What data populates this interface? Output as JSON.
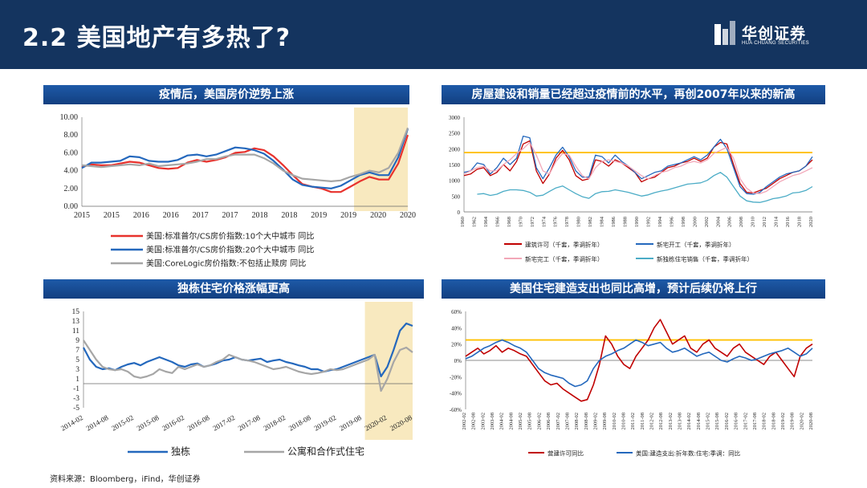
{
  "header": {
    "title": "2.2 美国地产有多热了?",
    "logo_text": "华创证券",
    "logo_sub": "HUA CHUANG SECURITIES"
  },
  "footer": {
    "source": "资料来源：Bloomberg，iFind，华创证券"
  },
  "colors": {
    "header_bg": "#14345f",
    "accent_red": "#e8322d",
    "accent_blue": "#2468bd",
    "gray": "#a6a6a6",
    "highlight": "#f8e9bf",
    "orange": "#ffc000"
  },
  "chart_data": [
    {
      "id": "tl",
      "type": "line",
      "title": "疫情后，美国房价逆势上涨",
      "ylim": [
        0,
        10
      ],
      "yticks": [
        "0.00",
        "2.00",
        "4.00",
        "6.00",
        "8.00",
        "10.00"
      ],
      "xticks": [
        "2015",
        "2015",
        "2016",
        "2016",
        "2017",
        "2017",
        "2018",
        "2018",
        "2019",
        "2019",
        "2020",
        "2020"
      ],
      "highlight": [
        0.835,
        1.0
      ],
      "series": [
        {
          "name": "美国:标准普尔/CS房价指数:10个大中城市 同比",
          "color": "#e8322d",
          "values": [
            4.4,
            4.7,
            4.6,
            4.6,
            4.8,
            5.0,
            4.9,
            4.6,
            4.3,
            4.2,
            4.3,
            4.9,
            5.2,
            5.0,
            5.2,
            5.5,
            6.0,
            6.1,
            6.5,
            6.3,
            5.6,
            4.6,
            3.5,
            2.5,
            2.2,
            2.0,
            1.6,
            1.6,
            2.2,
            2.8,
            3.3,
            3.0,
            3.0,
            4.8,
            8.0
          ]
        },
        {
          "name": "美国:标准普尔/CS房价指数:20个大中城市 同比",
          "color": "#2468bd",
          "values": [
            4.3,
            4.9,
            4.9,
            5.0,
            5.1,
            5.6,
            5.5,
            5.1,
            5.0,
            5.0,
            5.2,
            5.7,
            5.8,
            5.6,
            5.8,
            6.2,
            6.6,
            6.5,
            6.3,
            5.9,
            5.1,
            4.1,
            3.0,
            2.4,
            2.2,
            2.1,
            2.0,
            2.3,
            2.9,
            3.5,
            3.8,
            3.5,
            3.5,
            5.5,
            8.7
          ]
        },
        {
          "name": "美国:CoreLogic房价指数:不包括止赎房 同比",
          "color": "#a6a6a6",
          "values": [
            4.6,
            4.5,
            4.4,
            4.5,
            4.6,
            4.7,
            4.6,
            4.8,
            4.5,
            4.6,
            4.7,
            4.8,
            5.0,
            5.3,
            5.3,
            5.6,
            5.8,
            5.8,
            5.8,
            5.4,
            4.8,
            4.0,
            3.5,
            3.1,
            3.0,
            2.9,
            2.8,
            2.9,
            3.3,
            3.6,
            4.0,
            3.8,
            4.3,
            6.0,
            8.8
          ]
        }
      ]
    },
    {
      "id": "tr",
      "type": "line",
      "title": "房屋建设和销量已经超过疫情前的水平，再创2007年以来的新高",
      "ylim": [
        0,
        3000
      ],
      "yticks": [
        "0",
        "500",
        "1000",
        "1500",
        "2000",
        "2500",
        "3000"
      ],
      "xticks": [
        "1960",
        "1962",
        "1964",
        "1966",
        "1968",
        "1970",
        "1972",
        "1974",
        "1976",
        "1978",
        "1980",
        "1982",
        "1984",
        "1986",
        "1988",
        "1990",
        "1992",
        "1994",
        "1996",
        "1998",
        "2000",
        "2002",
        "2004",
        "2006",
        "2008",
        "2010",
        "2012",
        "2014",
        "2016",
        "2018",
        "2020"
      ],
      "reference_line": 1880,
      "series": [
        {
          "name": "建筑许可（千套，季调折年）",
          "color": "#c00000",
          "values": [
            1150,
            1200,
            1350,
            1400,
            1150,
            1250,
            1500,
            1300,
            1600,
            2150,
            2250,
            1300,
            900,
            1200,
            1700,
            1950,
            1650,
            1150,
            1000,
            1050,
            1650,
            1600,
            1450,
            1650,
            1550,
            1400,
            1250,
            950,
            1050,
            1100,
            1250,
            1400,
            1450,
            1550,
            1600,
            1700,
            1600,
            1700,
            2050,
            2200,
            2150,
            1500,
            900,
            620,
            600,
            680,
            750,
            900,
            1050,
            1150,
            1250,
            1300,
            1450,
            1650
          ]
        },
        {
          "name": "新宅开工（千套，季调折年）",
          "color": "#2468bd",
          "values": [
            1250,
            1300,
            1550,
            1500,
            1200,
            1400,
            1700,
            1500,
            1700,
            2400,
            2350,
            1400,
            1050,
            1400,
            1800,
            2050,
            1750,
            1300,
            1100,
            1100,
            1800,
            1750,
            1550,
            1800,
            1600,
            1450,
            1250,
            1050,
            1150,
            1250,
            1300,
            1450,
            1500,
            1550,
            1650,
            1750,
            1650,
            1800,
            2050,
            2300,
            2000,
            1400,
            800,
            580,
            560,
            620,
            800,
            950,
            1100,
            1200,
            1250,
            1300,
            1450,
            1750
          ]
        },
        {
          "name": "新宅完工（千套，季调折年）",
          "color": "#f2a7b8",
          "values": [
            1200,
            1300,
            1400,
            1450,
            1300,
            1300,
            1500,
            1650,
            1850,
            2000,
            2200,
            1800,
            1300,
            1200,
            1600,
            1850,
            1800,
            1450,
            1150,
            1050,
            1400,
            1600,
            1650,
            1600,
            1550,
            1450,
            1300,
            1150,
            1050,
            1150,
            1250,
            1300,
            1400,
            1450,
            1550,
            1600,
            1550,
            1650,
            1850,
            1950,
            2050,
            1700,
            1050,
            750,
            600,
            580,
            650,
            800,
            950,
            1050,
            1150,
            1200,
            1300,
            1400
          ]
        },
        {
          "name": "新独栋住宅销售（千套，季调折年）",
          "color": "#4bacc6",
          "values": [
            null,
            null,
            560,
            580,
            520,
            560,
            650,
            700,
            700,
            680,
            620,
            500,
            530,
            650,
            760,
            820,
            700,
            580,
            480,
            430,
            580,
            640,
            650,
            700,
            660,
            620,
            560,
            500,
            540,
            610,
            660,
            700,
            760,
            820,
            880,
            900,
            920,
            1000,
            1150,
            1250,
            1100,
            800,
            500,
            350,
            310,
            300,
            350,
            420,
            450,
            500,
            600,
            620,
            680,
            800
          ]
        }
      ]
    },
    {
      "id": "bl",
      "type": "line",
      "title": "独栋住宅价格涨幅更高",
      "ylim": [
        -5,
        15
      ],
      "yticks": [
        "-5",
        "-3",
        "-1",
        "1",
        "3",
        "5",
        "7",
        "9",
        "11",
        "13",
        "15"
      ],
      "xticks": [
        "2014-02",
        "2014-08",
        "2015-02",
        "2015-08",
        "2016-02",
        "2016-08",
        "2017-02",
        "2017-08",
        "2018-02",
        "2018-08",
        "2019-02",
        "2019-08",
        "2020-02",
        "2020-08"
      ],
      "highlight": [
        0.855,
        1.0
      ],
      "series": [
        {
          "name": "独栋",
          "color": "#2468bd",
          "values": [
            7.5,
            5,
            3.5,
            3,
            3.2,
            2.8,
            3.5,
            4,
            4.3,
            3.8,
            4.5,
            5,
            5.5,
            5,
            4.5,
            3.8,
            3.5,
            4,
            4.2,
            3.5,
            3.8,
            4.2,
            4.8,
            5,
            5.5,
            5,
            4.8,
            5,
            5.2,
            4.5,
            4.8,
            5,
            4.5,
            4.2,
            3.8,
            3.5,
            3,
            3,
            2.5,
            2.8,
            3,
            3.5,
            4,
            4.5,
            5,
            5.5,
            6,
            1.5,
            3.5,
            7,
            11,
            12.5,
            12
          ]
        },
        {
          "name": "公寓和合作式住宅",
          "color": "#a6a6a6",
          "values": [
            9,
            7,
            5,
            3.5,
            3,
            2.8,
            3,
            2.5,
            1.5,
            1.2,
            1.5,
            2,
            3,
            2.5,
            2.2,
            3.5,
            3,
            3.5,
            4,
            3.5,
            3.8,
            4.5,
            5,
            6,
            5.5,
            5,
            4.8,
            4.5,
            4,
            3.5,
            3,
            3.2,
            3.5,
            3,
            2.5,
            2.2,
            2,
            2.2,
            2.5,
            3,
            2.8,
            3,
            3.5,
            4,
            4.5,
            5,
            6,
            -1.5,
            1,
            4.5,
            7,
            7.5,
            6.5
          ]
        }
      ]
    },
    {
      "id": "br",
      "type": "line",
      "title": "美国住宅建造支出也同比高增，预计后续仍将上行",
      "ylim": [
        -60,
        60
      ],
      "yticks": [
        "-60%",
        "-40%",
        "-20%",
        "0%",
        "20%",
        "40%",
        "60%"
      ],
      "xticks": [
        "2002-02",
        "2002-08",
        "2003-02",
        "2003-08",
        "2004-02",
        "2004-08",
        "2005-02",
        "2005-08",
        "2006-02",
        "2006-08",
        "2007-02",
        "2007-08",
        "2008-02",
        "2008-08",
        "2009-02",
        "2009-08",
        "2010-02",
        "2010-08",
        "2011-02",
        "2011-08",
        "2012-02",
        "2012-08",
        "2013-02",
        "2013-08",
        "2014-02",
        "2014-08",
        "2015-02",
        "2015-08",
        "2016-02",
        "2016-08",
        "2017-02",
        "2017-08",
        "2018-02",
        "2018-08",
        "2019-02",
        "2019-08",
        "2020-02",
        "2020-08"
      ],
      "reference_line": 25,
      "series": [
        {
          "name": "营建许可同比",
          "color": "#c00000",
          "values": [
            5,
            10,
            15,
            8,
            12,
            18,
            10,
            15,
            12,
            8,
            5,
            -5,
            -15,
            -25,
            -30,
            -28,
            -35,
            -40,
            -45,
            -50,
            -48,
            -30,
            -5,
            30,
            20,
            5,
            -5,
            -10,
            5,
            15,
            25,
            40,
            50,
            35,
            20,
            25,
            30,
            15,
            10,
            20,
            25,
            15,
            10,
            5,
            15,
            20,
            10,
            5,
            0,
            -5,
            5,
            10,
            0,
            -10,
            -20,
            5,
            15,
            20
          ]
        },
        {
          "name": "美国:建造支出:折年数:住宅:季调：同比",
          "color": "#2468bd",
          "values": [
            2,
            5,
            10,
            15,
            18,
            22,
            25,
            22,
            18,
            15,
            10,
            0,
            -10,
            -15,
            -18,
            -20,
            -22,
            -28,
            -32,
            -30,
            -25,
            -10,
            0,
            5,
            8,
            12,
            15,
            20,
            25,
            22,
            18,
            20,
            22,
            15,
            10,
            12,
            15,
            10,
            5,
            8,
            10,
            5,
            0,
            -2,
            2,
            5,
            3,
            0,
            2,
            5,
            8,
            10,
            12,
            15,
            10,
            5,
            8,
            15
          ]
        }
      ]
    }
  ],
  "legends": {
    "tl": [
      "美国:标准普尔/CS房价指数:10个大中城市 同比",
      "美国:标准普尔/CS房价指数:20个大中城市 同比",
      "美国:CoreLogic房价指数:不包括止赎房 同比"
    ],
    "tr": [
      "建筑许可（千套，季调折年）",
      "新宅开工（千套，季调折年）",
      "新宅完工（千套，季调折年）",
      "新独栋住宅销售（千套，季调折年）"
    ],
    "bl": [
      "独栋",
      "公寓和合作式住宅"
    ],
    "br": [
      "营建许可同比",
      "美国:建造支出:折年数:住宅:季调：同比"
    ]
  }
}
